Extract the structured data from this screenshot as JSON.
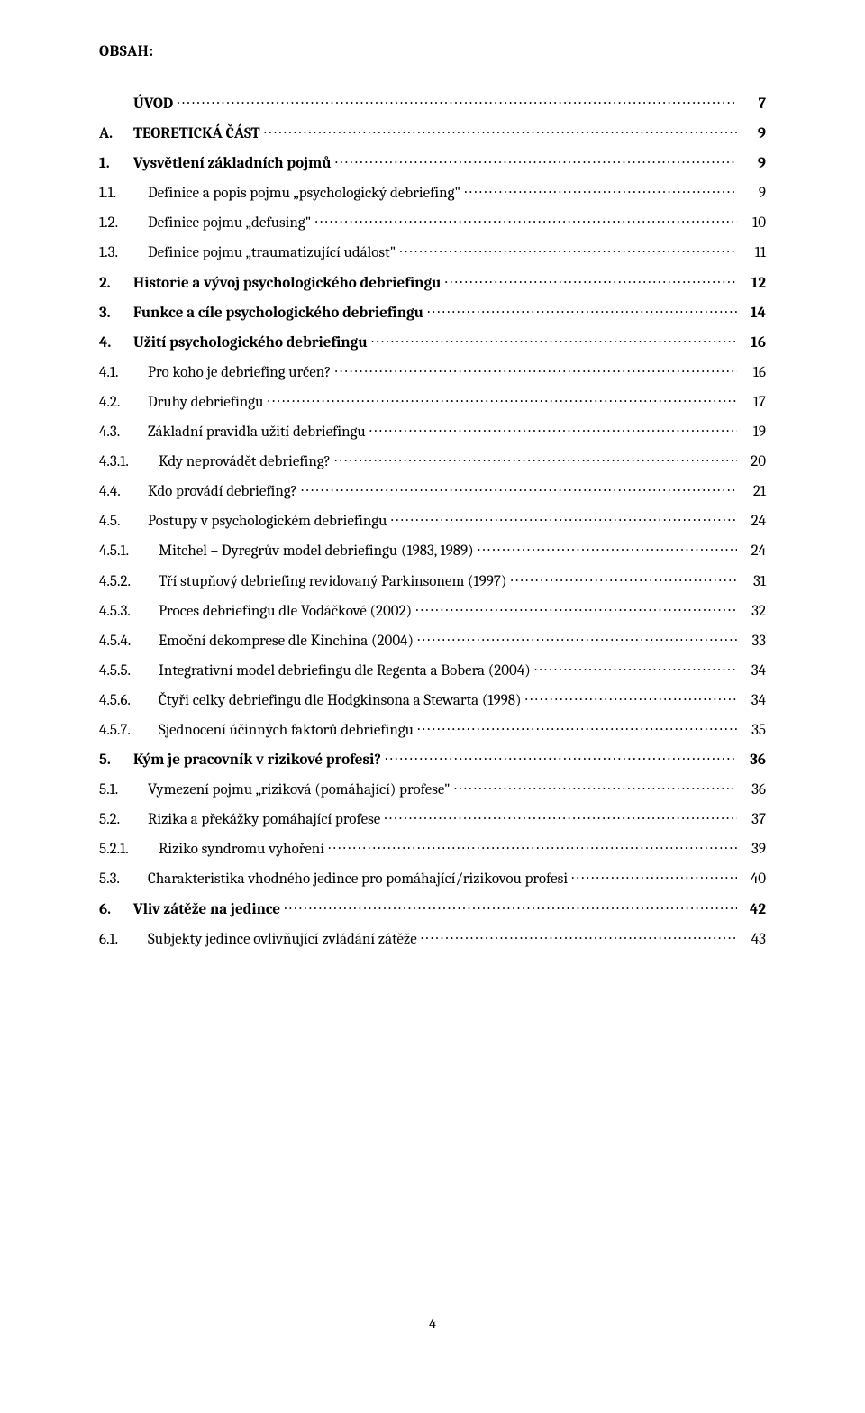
{
  "heading": "OBSAH:",
  "page_number": "4",
  "font": {
    "family": "Cambria",
    "body_size_pt": 12,
    "bold_weight": 700,
    "color": "#000000",
    "background": "#ffffff"
  },
  "toc": [
    {
      "num": "",
      "label": "ÚVOD",
      "page": "7",
      "bold": true,
      "level": 0,
      "blank_num": true
    },
    {
      "num": "A.",
      "label": "TEORETICKÁ ČÁST",
      "page": "9",
      "bold": true,
      "level": 0
    },
    {
      "num": "1.",
      "label": "Vysvětlení základních pojmů",
      "page": "9",
      "bold": true,
      "level": 0
    },
    {
      "num": "1.1.",
      "label": "Definice a popis pojmu „psychologický debriefing\"",
      "page": "9",
      "bold": false,
      "level": 1
    },
    {
      "num": "1.2.",
      "label": "Definice pojmu „defusing\"",
      "page": "10",
      "bold": false,
      "level": 1
    },
    {
      "num": "1.3.",
      "label": "Definice pojmu „traumatizující událost\"",
      "page": "11",
      "bold": false,
      "level": 1
    },
    {
      "num": "2.",
      "label": "Historie a vývoj psychologického debriefingu",
      "page": "12",
      "bold": true,
      "level": 0
    },
    {
      "num": "3.",
      "label": "Funkce a cíle psychologického debriefingu",
      "page": "14",
      "bold": true,
      "level": 0
    },
    {
      "num": "4.",
      "label": "Užití psychologického debriefingu",
      "page": "16",
      "bold": true,
      "level": 0
    },
    {
      "num": "4.1.",
      "label": "Pro koho je debriefing určen?",
      "page": "16",
      "bold": false,
      "level": 1
    },
    {
      "num": "4.2.",
      "label": "Druhy debriefingu",
      "page": "17",
      "bold": false,
      "level": 1
    },
    {
      "num": "4.3.",
      "label": "Základní pravidla užití debriefingu",
      "page": "19",
      "bold": false,
      "level": 1
    },
    {
      "num": "4.3.1.",
      "label": "Kdy neprovádět debriefing?",
      "page": "20",
      "bold": false,
      "level": 2
    },
    {
      "num": "4.4.",
      "label": "Kdo provádí debriefing?",
      "page": "21",
      "bold": false,
      "level": 1
    },
    {
      "num": "4.5.",
      "label": "Postupy v psychologickém debriefingu",
      "page": "24",
      "bold": false,
      "level": 1
    },
    {
      "num": "4.5.1.",
      "label": "Mitchel – Dyregrův model debriefingu (1983, 1989)",
      "page": "24",
      "bold": false,
      "level": 2
    },
    {
      "num": "4.5.2.",
      "label": "Tří stupňový debriefing revidovaný Parkinsonem (1997)",
      "page": "31",
      "bold": false,
      "level": 2
    },
    {
      "num": "4.5.3.",
      "label": "Proces debriefingu dle Vodáčkové (2002)",
      "page": "32",
      "bold": false,
      "level": 2
    },
    {
      "num": "4.5.4.",
      "label": "Emoční dekomprese dle Kinchina (2004)",
      "page": "33",
      "bold": false,
      "level": 2
    },
    {
      "num": "4.5.5.",
      "label": "Integrativní model debriefingu dle Regenta a Bobera (2004)",
      "page": "34",
      "bold": false,
      "level": 2
    },
    {
      "num": "4.5.6.",
      "label": "Čtyři celky debriefingu dle Hodgkinsona a Stewarta (1998)",
      "page": "34",
      "bold": false,
      "level": 2
    },
    {
      "num": "4.5.7.",
      "label": "Sjednocení účinných faktorů debriefingu",
      "page": "35",
      "bold": false,
      "level": 2
    },
    {
      "num": "5.",
      "label": "Kým je pracovník v rizikové profesi?",
      "page": "36",
      "bold": true,
      "level": 0
    },
    {
      "num": "5.1.",
      "label": "Vymezení pojmu „riziková (pomáhající) profese\"",
      "page": "36",
      "bold": false,
      "level": 1
    },
    {
      "num": "5.2.",
      "label": "Rizika a překážky pomáhající profese",
      "page": "37",
      "bold": false,
      "level": 1
    },
    {
      "num": "5.2.1.",
      "label": "Riziko syndromu vyhoření",
      "page": "39",
      "bold": false,
      "level": 2
    },
    {
      "num": "5.3.",
      "label": "Charakteristika vhodného jedince pro pomáhající/rizikovou profesi",
      "page": "40",
      "bold": false,
      "level": 1
    },
    {
      "num": "6.",
      "label": "Vliv zátěže na jedince",
      "page": "42",
      "bold": true,
      "level": 0
    },
    {
      "num": "6.1.",
      "label": "Subjekty jedince ovlivňující zvládání zátěže",
      "page": "43",
      "bold": false,
      "level": 1
    }
  ]
}
